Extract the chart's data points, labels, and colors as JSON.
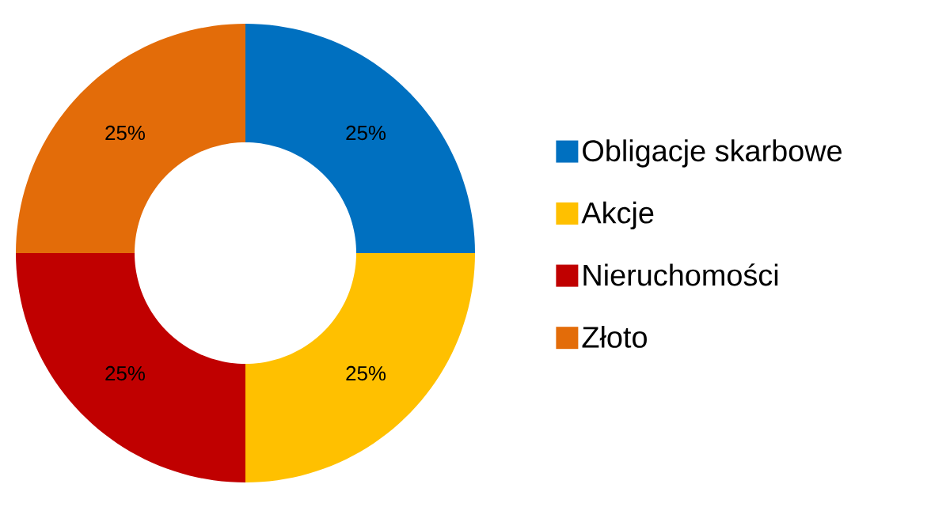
{
  "chart_data": {
    "type": "donut",
    "categories": [
      "Obligacje skarbowe",
      "Akcje",
      "Nieruchomości",
      "Złoto"
    ],
    "values": [
      25,
      25,
      25,
      25
    ],
    "colors": [
      "#0070c0",
      "#ffc000",
      "#c00000",
      "#e36c09"
    ],
    "value_labels": [
      "25%",
      "25%",
      "25%",
      "25%"
    ],
    "legend": "right"
  }
}
